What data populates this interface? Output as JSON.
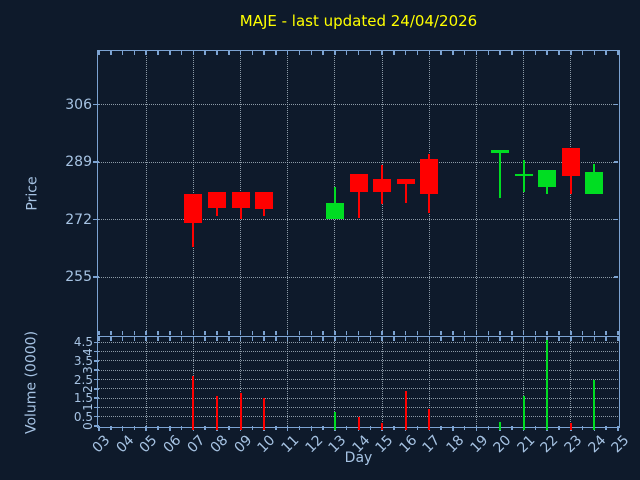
{
  "title": "MAJE - last updated 24/04/2026",
  "colors": {
    "background": "#0e1a2b",
    "title": "#ffff00",
    "axis_border": "#7ca3d2",
    "tick_label": "#a6c3e3",
    "grid": "#adb9c7",
    "up": "#00dd22",
    "down": "#ff0000"
  },
  "price_axis": {
    "label": "Price",
    "ticks": [
      255,
      272,
      289,
      306
    ]
  },
  "volume_axis": {
    "label": "Volume (0000)",
    "ticks": [
      "0",
      "0.5",
      "1",
      "1.5",
      "2",
      "2.5",
      "3",
      "3.5",
      "4",
      "4.5"
    ]
  },
  "x_axis": {
    "label": "Day",
    "tick_labels": [
      "03",
      "04",
      "05",
      "06",
      "07",
      "08",
      "09",
      "10",
      "11",
      "12",
      "13",
      "14",
      "15",
      "16",
      "17",
      "18",
      "19",
      "20",
      "21",
      "22",
      "23",
      "24",
      "25"
    ],
    "gridline_days": [
      5,
      7,
      9,
      11,
      13,
      15,
      17,
      19,
      21,
      23
    ]
  },
  "chart_data": {
    "type": "candlestick_with_volume",
    "title": "MAJE - last updated 24/04/2026",
    "xlabel": "Day",
    "ylabel_price": "Price",
    "ylabel_volume": "Volume (0000)",
    "x_range": [
      3,
      25
    ],
    "price_range": [
      238,
      322
    ],
    "volume_range": [
      0,
      4.9
    ],
    "grid": true,
    "candles": [
      {
        "day": 7,
        "open": 279.5,
        "high": 279.5,
        "low": 264,
        "close": 271,
        "volume": 2.7,
        "dir": "down"
      },
      {
        "day": 8,
        "open": 280,
        "high": 280,
        "low": 273,
        "close": 275.5,
        "volume": 1.6,
        "dir": "down"
      },
      {
        "day": 9,
        "open": 280,
        "high": 280,
        "low": 272,
        "close": 275.5,
        "volume": 1.8,
        "dir": "down"
      },
      {
        "day": 10,
        "open": 280,
        "high": 280,
        "low": 273,
        "close": 275,
        "volume": 1.5,
        "dir": "down"
      },
      {
        "day": 13,
        "open": 272,
        "high": 281.5,
        "low": 272,
        "close": 277,
        "volume": 0.75,
        "dir": "up"
      },
      {
        "day": 14,
        "open": 285.5,
        "high": 285.5,
        "low": 272.5,
        "close": 280,
        "volume": 0.5,
        "dir": "down"
      },
      {
        "day": 15,
        "open": 284,
        "high": 288,
        "low": 276.5,
        "close": 280,
        "volume": 0.15,
        "dir": "down"
      },
      {
        "day": 16,
        "open": 284,
        "high": 284,
        "low": 277,
        "close": 282.5,
        "volume": 1.9,
        "dir": "down"
      },
      {
        "day": 17,
        "open": 290,
        "high": 291.5,
        "low": 274,
        "close": 279.5,
        "volume": 0.9,
        "dir": "down"
      },
      {
        "day": 20,
        "open": 292.5,
        "high": 292.5,
        "low": 278.5,
        "close": 292.5,
        "volume": 0.2,
        "dir": "up"
      },
      {
        "day": 21,
        "open": 285.5,
        "high": 289.5,
        "low": 280,
        "close": 285.5,
        "volume": 1.6,
        "dir": "up"
      },
      {
        "day": 22,
        "open": 281.5,
        "high": 286.5,
        "low": 279.5,
        "close": 286.5,
        "volume": 4.6,
        "dir": "up"
      },
      {
        "day": 23,
        "open": 293,
        "high": 293,
        "low": 279.5,
        "close": 285,
        "volume": 0.15,
        "dir": "down"
      },
      {
        "day": 24,
        "open": 279.5,
        "high": 288.5,
        "low": 279.5,
        "close": 286,
        "volume": 2.5,
        "dir": "up"
      }
    ]
  }
}
